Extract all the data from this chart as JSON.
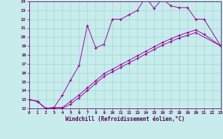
{
  "xlabel": "Windchill (Refroidissement éolien,°C)",
  "xlim": [
    0,
    23
  ],
  "ylim": [
    12,
    24
  ],
  "xticks": [
    0,
    1,
    2,
    3,
    4,
    5,
    6,
    7,
    8,
    9,
    10,
    11,
    12,
    13,
    14,
    15,
    16,
    17,
    18,
    19,
    20,
    21,
    22,
    23
  ],
  "yticks": [
    12,
    13,
    14,
    15,
    16,
    17,
    18,
    19,
    20,
    21,
    22,
    23,
    24
  ],
  "bg_color": "#c8ecec",
  "grid_color": "#a0d4d4",
  "line_color": "#990099",
  "curve1_x": [
    0,
    1,
    2,
    3,
    4,
    5,
    6,
    7,
    8,
    9,
    10,
    11,
    12,
    13,
    14,
    15,
    16,
    17,
    18,
    19,
    20,
    21,
    23
  ],
  "curve1_y": [
    13,
    12.8,
    12,
    12.1,
    13.5,
    15.2,
    16.8,
    21.3,
    18.8,
    19.2,
    22.0,
    22.0,
    22.5,
    23.0,
    24.5,
    23.2,
    24.3,
    23.5,
    23.3,
    23.3,
    22.0,
    22.0,
    19.0
  ],
  "curve2_x": [
    0,
    1,
    2,
    3,
    4,
    5,
    6,
    7,
    8,
    9,
    10,
    11,
    12,
    13,
    14,
    15,
    16,
    17,
    18,
    19,
    20,
    21,
    23
  ],
  "curve2_y": [
    13,
    12.8,
    12,
    12.1,
    12.1,
    12.8,
    13.5,
    14.3,
    15.1,
    15.9,
    16.4,
    16.9,
    17.4,
    17.9,
    18.4,
    18.9,
    19.4,
    19.8,
    20.2,
    20.5,
    20.8,
    20.3,
    19.0
  ],
  "curve3_x": [
    0,
    1,
    2,
    3,
    4,
    5,
    6,
    7,
    8,
    9,
    10,
    11,
    12,
    13,
    14,
    15,
    16,
    17,
    18,
    19,
    20,
    23
  ],
  "curve3_y": [
    13,
    12.8,
    12,
    12.0,
    12.0,
    12.5,
    13.2,
    14.0,
    14.8,
    15.6,
    16.1,
    16.6,
    17.1,
    17.6,
    18.1,
    18.6,
    19.1,
    19.5,
    19.9,
    20.2,
    20.5,
    19.0
  ]
}
